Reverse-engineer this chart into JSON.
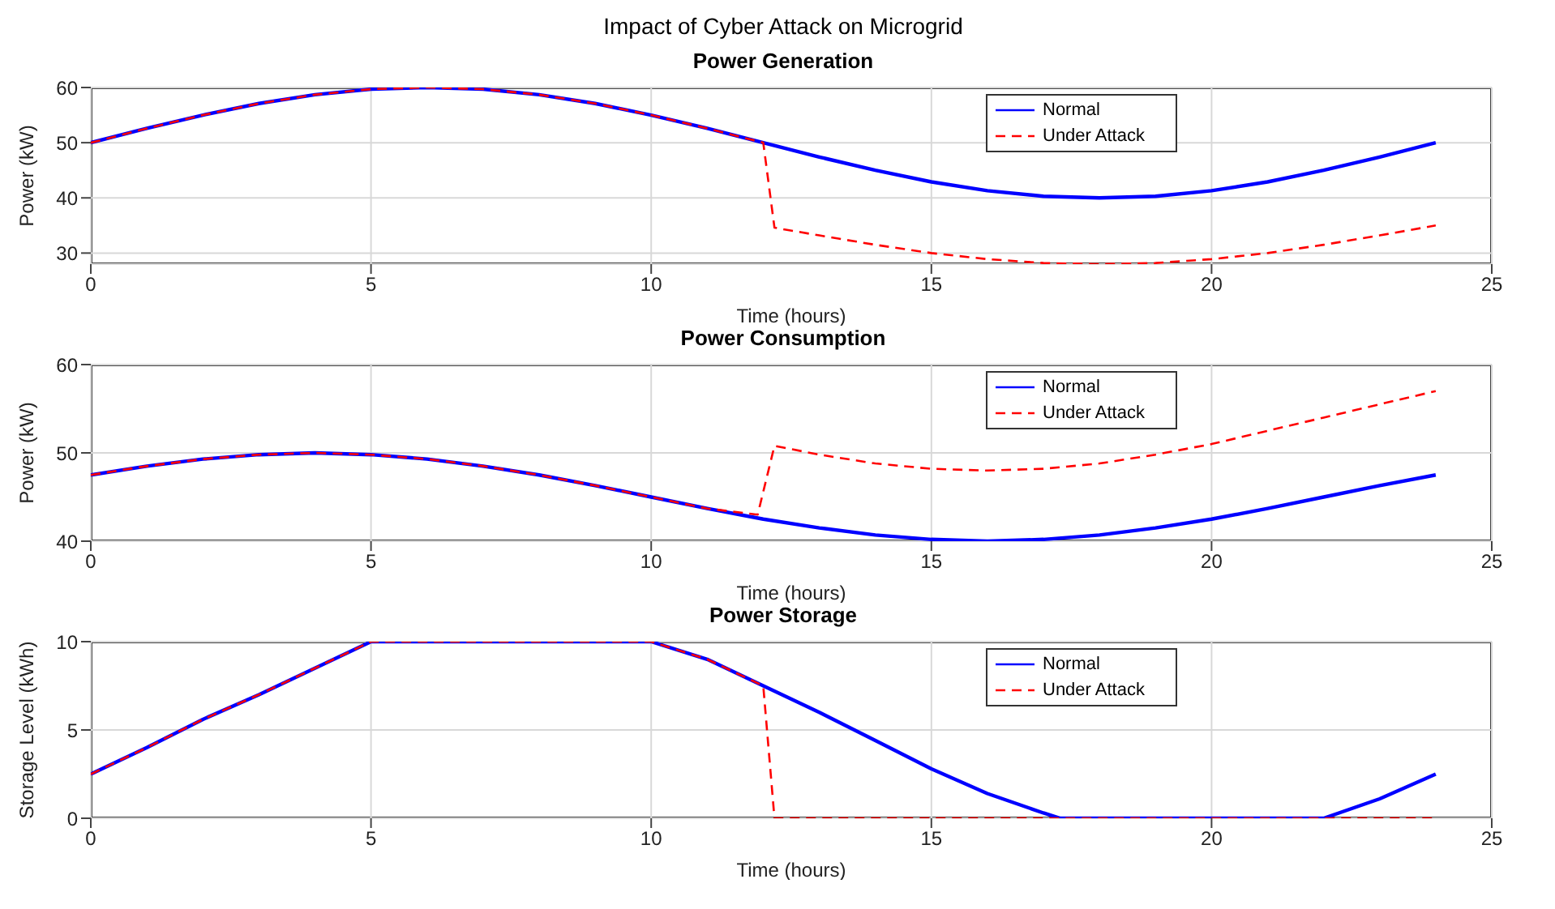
{
  "chart_data": [
    {
      "type": "line",
      "title": "Power Generation",
      "annotations": [
        "Impact of Cyber Attack on Microgrid"
      ],
      "xlabel": "Time (hours)",
      "ylabel": "Power (kW)",
      "xlim": [
        0,
        25
      ],
      "xticks": [
        0,
        5,
        10,
        15,
        20,
        25
      ],
      "ylim": [
        28,
        60
      ],
      "yticks": [
        30,
        40,
        50,
        60
      ],
      "grid": true,
      "legend": "top right",
      "marker": "none",
      "series": [
        {
          "name": "Normal",
          "color": "#0000ff",
          "line_style": "solid",
          "x": [
            0,
            1,
            2,
            3,
            4,
            5,
            6,
            7,
            8,
            9,
            10,
            11,
            12,
            13,
            14,
            15,
            16,
            17,
            18,
            19,
            20,
            21,
            22,
            23,
            24
          ],
          "values": [
            50,
            52.6,
            55,
            57.1,
            58.7,
            59.7,
            60,
            59.7,
            58.7,
            57.1,
            55,
            52.6,
            50,
            47.4,
            45,
            42.9,
            41.3,
            40.3,
            40,
            40.3,
            41.3,
            42.9,
            45,
            47.4,
            50
          ]
        },
        {
          "name": "Under Attack",
          "color": "#ff0000",
          "line_style": "dashed",
          "x": [
            0,
            1,
            2,
            3,
            4,
            5,
            6,
            7,
            8,
            9,
            10,
            11,
            12,
            12.2,
            13,
            14,
            15,
            16,
            17,
            18,
            19,
            20,
            21,
            22,
            23,
            24
          ],
          "values": [
            50,
            52.6,
            55,
            57.1,
            58.7,
            59.7,
            60,
            59.7,
            58.7,
            57.1,
            55,
            52.6,
            50,
            34.6,
            33.2,
            31.5,
            30,
            28.9,
            28.2,
            28,
            28.2,
            28.9,
            30,
            31.5,
            33.2,
            35
          ]
        }
      ]
    },
    {
      "type": "line",
      "title": "Power Consumption",
      "xlabel": "Time (hours)",
      "ylabel": "Power (kW)",
      "xlim": [
        0,
        25
      ],
      "xticks": [
        0,
        5,
        10,
        15,
        20,
        25
      ],
      "ylim": [
        40,
        60
      ],
      "yticks": [
        40,
        50,
        60
      ],
      "grid": true,
      "legend": "top right",
      "marker": "none",
      "series": [
        {
          "name": "Normal",
          "color": "#0000ff",
          "line_style": "solid",
          "x": [
            0,
            1,
            2,
            3,
            4,
            5,
            6,
            7,
            8,
            9,
            10,
            11,
            12,
            13,
            14,
            15,
            16,
            17,
            18,
            19,
            20,
            21,
            22,
            23,
            24
          ],
          "values": [
            47.5,
            48.5,
            49.3,
            49.8,
            50,
            49.8,
            49.3,
            48.5,
            47.5,
            46.3,
            45,
            43.7,
            42.5,
            41.5,
            40.7,
            40.2,
            40,
            40.2,
            40.7,
            41.5,
            42.5,
            43.7,
            45,
            46.3,
            47.5
          ]
        },
        {
          "name": "Under Attack",
          "color": "#ff0000",
          "line_style": "dashed",
          "x": [
            0,
            1,
            2,
            3,
            4,
            5,
            6,
            7,
            8,
            9,
            10,
            11,
            11.9,
            12.2,
            13,
            14,
            15,
            16,
            17,
            18,
            19,
            20,
            21,
            22,
            23,
            24
          ],
          "values": [
            47.5,
            48.5,
            49.3,
            49.8,
            50,
            49.8,
            49.3,
            48.5,
            47.5,
            46.3,
            45,
            43.7,
            43,
            50.8,
            49.8,
            48.8,
            48.2,
            48,
            48.2,
            48.8,
            49.8,
            51,
            52.5,
            54,
            55.5,
            57
          ]
        }
      ]
    },
    {
      "type": "line",
      "title": "Power Storage",
      "xlabel": "Time (hours)",
      "ylabel": "Storage Level (kWh)",
      "xlim": [
        0,
        25
      ],
      "xticks": [
        0,
        5,
        10,
        15,
        20,
        25
      ],
      "ylim": [
        0,
        10
      ],
      "yticks": [
        0,
        5,
        10
      ],
      "grid": true,
      "legend": "top right",
      "marker": "none",
      "series": [
        {
          "name": "Normal",
          "color": "#0000ff",
          "line_style": "solid",
          "x": [
            0,
            1,
            2,
            3,
            4,
            5,
            6,
            7,
            8,
            9,
            10,
            11,
            12,
            13,
            14,
            15,
            16,
            17,
            17.3,
            18,
            19,
            20,
            21,
            22,
            23,
            24
          ],
          "values": [
            2.5,
            4,
            5.6,
            7,
            8.5,
            10,
            10,
            10,
            10,
            10,
            10,
            9,
            7.5,
            6,
            4.4,
            2.8,
            1.4,
            0.3,
            0,
            0,
            0,
            0,
            0,
            0,
            1.1,
            2.5
          ]
        },
        {
          "name": "Under Attack",
          "color": "#ff0000",
          "line_style": "dashed",
          "x": [
            0,
            1,
            2,
            3,
            4,
            5,
            6,
            7,
            8,
            9,
            10,
            11,
            12,
            12.2,
            13,
            14,
            15,
            16,
            17,
            18,
            19,
            20,
            21,
            22,
            23,
            24
          ],
          "values": [
            2.5,
            4,
            5.6,
            7,
            8.5,
            10,
            10,
            10,
            10,
            10,
            10,
            9,
            7.5,
            0,
            0,
            0,
            0,
            0,
            0,
            0,
            0,
            0,
            0,
            0,
            0,
            0
          ]
        }
      ]
    }
  ]
}
